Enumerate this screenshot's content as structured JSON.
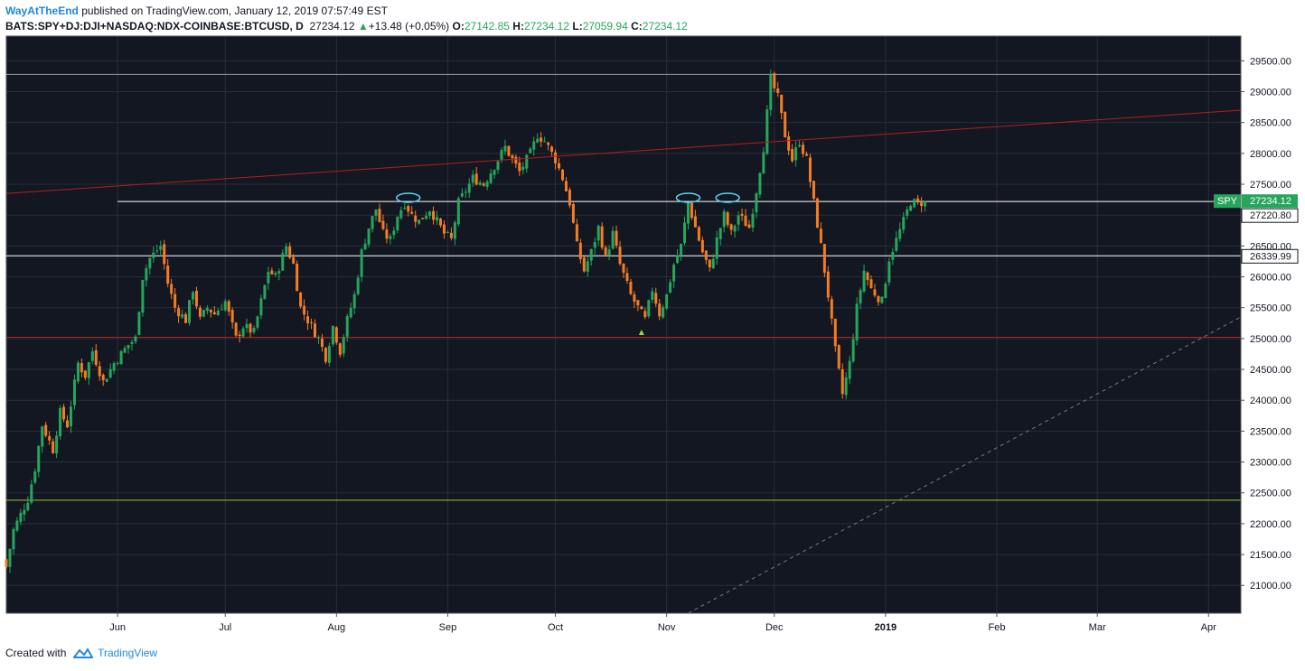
{
  "header": {
    "author": "WayAtTheEnd",
    "published_text": "published on TradingView.com, January 12, 2019 07:57:49 EST",
    "symbol": "BATS:SPY+DJ:DJI+NASDAQ:NDX-COINBASE:BTCUSD, D",
    "last": "27234.12",
    "change": "+13.48 (+0.05%)",
    "open_label": "O:",
    "open": "27142.85",
    "high_label": "H:",
    "high": "27234.12",
    "low_label": "L:",
    "low": "27059.94",
    "close_label": "C:",
    "close": "27234.12"
  },
  "footer": {
    "created_with": "Created with",
    "brand": "TradingView"
  },
  "colors": {
    "background": "#131722",
    "grid": "#2a2e39",
    "up": "#26a65b",
    "down": "#f57c23",
    "text": "#d1d4dc",
    "trendline_red": "#b71c1c",
    "level_red": "#b71c1c",
    "level_white": "#ffffff",
    "level_gray": "#9598a1",
    "level_yellow": "#9fbf3a",
    "projection": "#787b86",
    "ellipse": "#5bd3f0",
    "spy_label": "#26a65b"
  },
  "chart_data": {
    "type": "candlestick",
    "x_axis": {
      "type": "date",
      "range": [
        "2018-05-01",
        "2019-04-10"
      ],
      "tick_labels": [
        {
          "date": "2018-06-01",
          "label": "Jun",
          "bold": false
        },
        {
          "date": "2018-07-01",
          "label": "Jul",
          "bold": false
        },
        {
          "date": "2018-08-01",
          "label": "Aug",
          "bold": false
        },
        {
          "date": "2018-09-01",
          "label": "Sep",
          "bold": false
        },
        {
          "date": "2018-10-01",
          "label": "Oct",
          "bold": false
        },
        {
          "date": "2018-11-01",
          "label": "Nov",
          "bold": false
        },
        {
          "date": "2018-12-01",
          "label": "Dec",
          "bold": false
        },
        {
          "date": "2019-01-01",
          "label": "2019",
          "bold": true
        },
        {
          "date": "2019-02-01",
          "label": "Feb",
          "bold": false
        },
        {
          "date": "2019-03-01",
          "label": "Mar",
          "bold": false
        },
        {
          "date": "2019-04-01",
          "label": "Apr",
          "bold": false
        }
      ]
    },
    "y_axis": {
      "position": "right",
      "range": [
        20550,
        29900
      ],
      "tick_labels": [
        "29500.00",
        "29000.00",
        "28500.00",
        "28000.00",
        "27500.00",
        "27000.00",
        "26500.00",
        "26000.00",
        "25500.00",
        "25000.00",
        "24500.00",
        "24000.00",
        "23500.00",
        "23000.00",
        "22500.00",
        "22000.00",
        "21500.00",
        "21000.00"
      ],
      "grid": true
    },
    "price_labels": [
      {
        "text": "SPY",
        "value": 27234.12,
        "kind": "symbol"
      },
      {
        "text": "27234.12",
        "value": 27234.12,
        "kind": "last"
      },
      {
        "text": "27220.80",
        "value": 27220.8,
        "kind": "level"
      },
      {
        "text": "26339.99",
        "value": 26339.99,
        "kind": "level"
      }
    ],
    "horizontal_levels": [
      {
        "value": 29280,
        "start": "2018-05-01",
        "color": "gray"
      },
      {
        "value": 27220.8,
        "start": "2018-06-01",
        "color": "white"
      },
      {
        "value": 26339.99,
        "start": "2018-05-01",
        "color": "white"
      },
      {
        "value": 25020,
        "start": "2018-05-01",
        "color": "red"
      },
      {
        "value": 22380,
        "start": "2018-05-01",
        "color": "yellow"
      }
    ],
    "trendlines": [
      {
        "from": [
          "2018-05-01",
          27350
        ],
        "to": [
          "2019-04-10",
          28700
        ],
        "color": "red",
        "style": "solid"
      },
      {
        "from": [
          "2018-11-07",
          20550
        ],
        "to": [
          "2019-04-10",
          25350
        ],
        "color": "gray",
        "style": "dashed"
      }
    ],
    "ellipse_markers": [
      {
        "date": "2018-08-21",
        "value": 27280
      },
      {
        "date": "2018-11-07",
        "value": 27280
      },
      {
        "date": "2018-11-18",
        "value": 27280
      }
    ],
    "triangle_markers": [
      {
        "date": "2018-10-25",
        "value": 25100
      }
    ],
    "anchors": [
      {
        "date": "2018-05-01",
        "close": 21300
      },
      {
        "date": "2018-05-03",
        "close": 21900
      },
      {
        "date": "2018-05-07",
        "close": 22400
      },
      {
        "date": "2018-05-09",
        "close": 22900
      },
      {
        "date": "2018-05-11",
        "close": 23600
      },
      {
        "date": "2018-05-14",
        "close": 23200
      },
      {
        "date": "2018-05-16",
        "close": 23800
      },
      {
        "date": "2018-05-18",
        "close": 23600
      },
      {
        "date": "2018-05-21",
        "close": 24600
      },
      {
        "date": "2018-05-23",
        "close": 24400
      },
      {
        "date": "2018-05-25",
        "close": 24800
      },
      {
        "date": "2018-05-28",
        "close": 24300
      },
      {
        "date": "2018-05-31",
        "close": 24600
      },
      {
        "date": "2018-06-04",
        "close": 24900
      },
      {
        "date": "2018-06-06",
        "close": 25000
      },
      {
        "date": "2018-06-08",
        "close": 26000
      },
      {
        "date": "2018-06-10",
        "close": 26300
      },
      {
        "date": "2018-06-13",
        "close": 26500
      },
      {
        "date": "2018-06-15",
        "close": 25900
      },
      {
        "date": "2018-06-17",
        "close": 25500
      },
      {
        "date": "2018-06-20",
        "close": 25300
      },
      {
        "date": "2018-06-22",
        "close": 25800
      },
      {
        "date": "2018-06-24",
        "close": 25300
      },
      {
        "date": "2018-06-26",
        "close": 25500
      },
      {
        "date": "2018-06-28",
        "close": 25400
      },
      {
        "date": "2018-07-01",
        "close": 25600
      },
      {
        "date": "2018-07-04",
        "close": 25000
      },
      {
        "date": "2018-07-06",
        "close": 25200
      },
      {
        "date": "2018-07-09",
        "close": 25100
      },
      {
        "date": "2018-07-11",
        "close": 25600
      },
      {
        "date": "2018-07-13",
        "close": 26100
      },
      {
        "date": "2018-07-15",
        "close": 26000
      },
      {
        "date": "2018-07-18",
        "close": 26500
      },
      {
        "date": "2018-07-20",
        "close": 26200
      },
      {
        "date": "2018-07-22",
        "close": 25500
      },
      {
        "date": "2018-07-24",
        "close": 25300
      },
      {
        "date": "2018-07-27",
        "close": 25000
      },
      {
        "date": "2018-07-29",
        "close": 24700
      },
      {
        "date": "2018-07-31",
        "close": 25200
      },
      {
        "date": "2018-08-02",
        "close": 24800
      },
      {
        "date": "2018-08-04",
        "close": 25300
      },
      {
        "date": "2018-08-06",
        "close": 25700
      },
      {
        "date": "2018-08-08",
        "close": 26400
      },
      {
        "date": "2018-08-10",
        "close": 26800
      },
      {
        "date": "2018-08-12",
        "close": 27100
      },
      {
        "date": "2018-08-14",
        "close": 26700
      },
      {
        "date": "2018-08-16",
        "close": 26600
      },
      {
        "date": "2018-08-18",
        "close": 27000
      },
      {
        "date": "2018-08-20",
        "close": 27200
      },
      {
        "date": "2018-08-22",
        "close": 27000
      },
      {
        "date": "2018-08-24",
        "close": 26900
      },
      {
        "date": "2018-08-27",
        "close": 27100
      },
      {
        "date": "2018-08-29",
        "close": 26900
      },
      {
        "date": "2018-08-31",
        "close": 26700
      },
      {
        "date": "2018-09-02",
        "close": 26600
      },
      {
        "date": "2018-09-04",
        "close": 27200
      },
      {
        "date": "2018-09-06",
        "close": 27400
      },
      {
        "date": "2018-09-08",
        "close": 27600
      },
      {
        "date": "2018-09-11",
        "close": 27500
      },
      {
        "date": "2018-09-13",
        "close": 27700
      },
      {
        "date": "2018-09-15",
        "close": 27900
      },
      {
        "date": "2018-09-17",
        "close": 28100
      },
      {
        "date": "2018-09-19",
        "close": 27900
      },
      {
        "date": "2018-09-21",
        "close": 27700
      },
      {
        "date": "2018-09-24",
        "close": 28000
      },
      {
        "date": "2018-09-26",
        "close": 28300
      },
      {
        "date": "2018-09-28",
        "close": 28200
      },
      {
        "date": "2018-10-01",
        "close": 27900
      },
      {
        "date": "2018-10-03",
        "close": 27600
      },
      {
        "date": "2018-10-05",
        "close": 27200
      },
      {
        "date": "2018-10-07",
        "close": 26500
      },
      {
        "date": "2018-10-09",
        "close": 26100
      },
      {
        "date": "2018-10-11",
        "close": 26400
      },
      {
        "date": "2018-10-13",
        "close": 26800
      },
      {
        "date": "2018-10-15",
        "close": 26300
      },
      {
        "date": "2018-10-17",
        "close": 26700
      },
      {
        "date": "2018-10-19",
        "close": 26200
      },
      {
        "date": "2018-10-22",
        "close": 25700
      },
      {
        "date": "2018-10-24",
        "close": 25500
      },
      {
        "date": "2018-10-26",
        "close": 25300
      },
      {
        "date": "2018-10-28",
        "close": 25800
      },
      {
        "date": "2018-10-30",
        "close": 25400
      },
      {
        "date": "2018-11-01",
        "close": 25700
      },
      {
        "date": "2018-11-03",
        "close": 26200
      },
      {
        "date": "2018-11-05",
        "close": 26500
      },
      {
        "date": "2018-11-07",
        "close": 27200
      },
      {
        "date": "2018-11-09",
        "close": 26800
      },
      {
        "date": "2018-11-11",
        "close": 26400
      },
      {
        "date": "2018-11-13",
        "close": 26100
      },
      {
        "date": "2018-11-15",
        "close": 26600
      },
      {
        "date": "2018-11-17",
        "close": 27000
      },
      {
        "date": "2018-11-19",
        "close": 26700
      },
      {
        "date": "2018-11-21",
        "close": 27000
      },
      {
        "date": "2018-11-24",
        "close": 26800
      },
      {
        "date": "2018-11-26",
        "close": 27400
      },
      {
        "date": "2018-11-28",
        "close": 28100
      },
      {
        "date": "2018-11-30",
        "close": 29200
      },
      {
        "date": "2018-12-02",
        "close": 28900
      },
      {
        "date": "2018-12-04",
        "close": 28300
      },
      {
        "date": "2018-12-06",
        "close": 27900
      },
      {
        "date": "2018-12-08",
        "close": 28200
      },
      {
        "date": "2018-12-10",
        "close": 27900
      },
      {
        "date": "2018-12-12",
        "close": 27200
      },
      {
        "date": "2018-12-14",
        "close": 26500
      },
      {
        "date": "2018-12-16",
        "close": 25700
      },
      {
        "date": "2018-12-18",
        "close": 24800
      },
      {
        "date": "2018-12-20",
        "close": 24100
      },
      {
        "date": "2018-12-22",
        "close": 24600
      },
      {
        "date": "2018-12-24",
        "close": 25500
      },
      {
        "date": "2018-12-26",
        "close": 26100
      },
      {
        "date": "2018-12-28",
        "close": 25800
      },
      {
        "date": "2018-12-31",
        "close": 25600
      },
      {
        "date": "2019-01-02",
        "close": 26300
      },
      {
        "date": "2019-01-04",
        "close": 26600
      },
      {
        "date": "2019-01-06",
        "close": 26900
      },
      {
        "date": "2019-01-08",
        "close": 27220
      },
      {
        "date": "2019-01-10",
        "close": 27180
      },
      {
        "date": "2019-01-12",
        "close": 27234
      }
    ]
  }
}
